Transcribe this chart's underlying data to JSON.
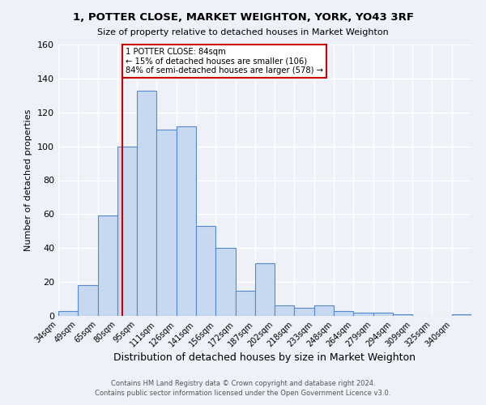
{
  "title": "1, POTTER CLOSE, MARKET WEIGHTON, YORK, YO43 3RF",
  "subtitle": "Size of property relative to detached houses in Market Weighton",
  "xlabel": "Distribution of detached houses by size in Market Weighton",
  "ylabel": "Number of detached properties",
  "footer_line1": "Contains HM Land Registry data © Crown copyright and database right 2024.",
  "footer_line2": "Contains public sector information licensed under the Open Government Licence v3.0.",
  "bin_labels": [
    "34sqm",
    "49sqm",
    "65sqm",
    "80sqm",
    "95sqm",
    "111sqm",
    "126sqm",
    "141sqm",
    "156sqm",
    "172sqm",
    "187sqm",
    "202sqm",
    "218sqm",
    "233sqm",
    "248sqm",
    "264sqm",
    "279sqm",
    "294sqm",
    "309sqm",
    "325sqm",
    "340sqm"
  ],
  "bar_values": [
    3,
    18,
    59,
    100,
    133,
    110,
    112,
    53,
    40,
    15,
    31,
    6,
    5,
    6,
    3,
    2,
    2,
    1,
    0,
    0,
    1
  ],
  "bar_color": "#c6d9f0",
  "bar_edge_color": "#5588cc",
  "vline_color": "#cc0000",
  "annotation_title": "1 POTTER CLOSE: 84sqm",
  "annotation_line1": "← 15% of detached houses are smaller (106)",
  "annotation_line2": "84% of semi-detached houses are larger (578) →",
  "annotation_box_edge": "#cc0000",
  "ylim": [
    0,
    160
  ],
  "background_color": "#eef2f8"
}
